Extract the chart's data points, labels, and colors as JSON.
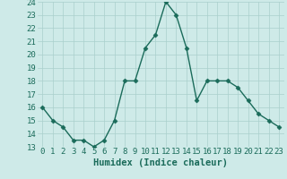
{
  "x": [
    0,
    1,
    2,
    3,
    4,
    5,
    6,
    7,
    8,
    9,
    10,
    11,
    12,
    13,
    14,
    15,
    16,
    17,
    18,
    19,
    20,
    21,
    22,
    23
  ],
  "y": [
    16,
    15,
    14.5,
    13.5,
    13.5,
    13,
    13.5,
    15,
    18,
    18,
    20.5,
    21.5,
    24,
    23,
    20.5,
    16.5,
    18,
    18,
    18,
    17.5,
    16.5,
    15.5,
    15,
    14.5
  ],
  "xlabel": "Humidex (Indice chaleur)",
  "ylim": [
    13,
    24
  ],
  "xlim": [
    -0.5,
    23.5
  ],
  "yticks": [
    13,
    14,
    15,
    16,
    17,
    18,
    19,
    20,
    21,
    22,
    23,
    24
  ],
  "xticks": [
    0,
    1,
    2,
    3,
    4,
    5,
    6,
    7,
    8,
    9,
    10,
    11,
    12,
    13,
    14,
    15,
    16,
    17,
    18,
    19,
    20,
    21,
    22,
    23
  ],
  "line_color": "#1a6b5a",
  "marker": "D",
  "marker_size": 2.5,
  "bg_color": "#ceeae8",
  "grid_color": "#aacfcc",
  "tick_label_fontsize": 6.5,
  "xlabel_fontsize": 7.5,
  "line_width": 1.0
}
